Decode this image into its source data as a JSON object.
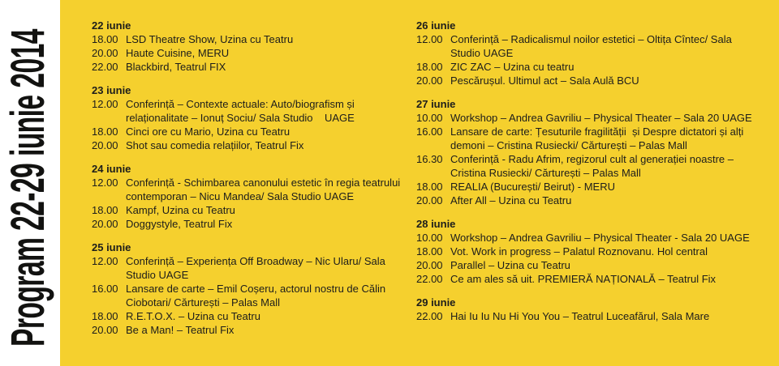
{
  "poster": {
    "title_vertical": "Program 22-29 iunie 2014",
    "colors": {
      "background_yellow": "#F5D02E",
      "sidebar_white": "#FFFFFF",
      "text_black": "#1D1D1B"
    },
    "columns": [
      {
        "days": [
          {
            "date": "22 iunie",
            "events": [
              {
                "time": "18.00",
                "description": "LSD Theatre Show, Uzina cu Teatru"
              },
              {
                "time": "20.00",
                "description": "Haute Cuisine, MERU"
              },
              {
                "time": "22.00",
                "description": "Blackbird, Teatrul FIX"
              }
            ]
          },
          {
            "date": "23 iunie",
            "events": [
              {
                "time": "12.00",
                "description": "Conferință – Contexte actuale: Auto/biografism și relaționalitate – Ionuț Sociu/ Sala Studio    UAGE"
              },
              {
                "time": "18.00",
                "description": "Cinci ore cu Mario, Uzina cu Teatru"
              },
              {
                "time": "20.00",
                "description": "Shot sau comedia relațiilor, Teatrul Fix"
              }
            ]
          },
          {
            "date": "24 iunie",
            "events": [
              {
                "time": "12.00",
                "description": "Conferință - Schimbarea canonului estetic în regia teatrului contemporan – Nicu Mandea/ Sala Studio UAGE"
              },
              {
                "time": "18.00",
                "description": "Kampf, Uzina cu Teatru"
              },
              {
                "time": "20.00",
                "description": "Doggystyle, Teatrul Fix"
              }
            ]
          },
          {
            "date": "25 iunie",
            "events": [
              {
                "time": "12.00",
                "description": "Conferință – Experiența Off Broadway – Nic Ularu/ Sala Studio UAGE"
              },
              {
                "time": "16.00",
                "description": "Lansare de carte – Emil Coșeru, actorul nostru de Călin Ciobotari/ Cărturești – Palas Mall"
              },
              {
                "time": "18.00",
                "description": "R.E.T.O.X. – Uzina cu Teatru"
              },
              {
                "time": "20.00",
                "description": "Be a Man! – Teatrul Fix"
              }
            ]
          }
        ]
      },
      {
        "days": [
          {
            "date": "26 iunie",
            "events": [
              {
                "time": "12.00",
                "description": "Conferință – Radicalismul noilor estetici – Oltița Cîntec/ Sala Studio UAGE"
              },
              {
                "time": "18.00",
                "description": "ZIC ZAC – Uzina cu teatru"
              },
              {
                "time": "20.00",
                "description": "Pescărușul. Ultimul act – Sala Aulă BCU"
              }
            ]
          },
          {
            "date": "27 iunie",
            "events": [
              {
                "time": "10.00",
                "description": "Workshop – Andrea Gavriliu – Physical Theater – Sala 20 UAGE"
              },
              {
                "time": "16.00",
                "description": "Lansare de carte: Țesuturile fragilității  și Despre dictatori și alți demoni – Cristina Rusiecki/ Cărturești – Palas Mall"
              },
              {
                "time": "16.30",
                "description": "Conferință - Radu Afrim, regizorul cult al generației noastre – Cristina Rusiecki/ Cărturești – Palas Mall"
              },
              {
                "time": "18.00",
                "description": "REALIA (București/ Beirut) - MERU"
              },
              {
                "time": "20.00",
                "description": "After All – Uzina cu Teatru"
              }
            ]
          },
          {
            "date": "28 iunie",
            "events": [
              {
                "time": "10.00",
                "description": "Workshop – Andrea Gavriliu – Physical Theater - Sala 20 UAGE"
              },
              {
                "time": "18.00",
                "description": "Vot. Work in progress – Palatul Roznovanu. Hol central"
              },
              {
                "time": "20.00",
                "description": "Parallel – Uzina cu Teatru"
              },
              {
                "time": "22.00",
                "description": "Ce am ales să uit. PREMIERĂ NAȚIONALĂ – Teatrul Fix"
              }
            ]
          },
          {
            "date": "29 iunie",
            "events": [
              {
                "time": "22.00",
                "description": "Hai Iu Iu Nu Hi You You – Teatrul Luceafărul, Sala Mare"
              }
            ]
          }
        ]
      }
    ]
  }
}
